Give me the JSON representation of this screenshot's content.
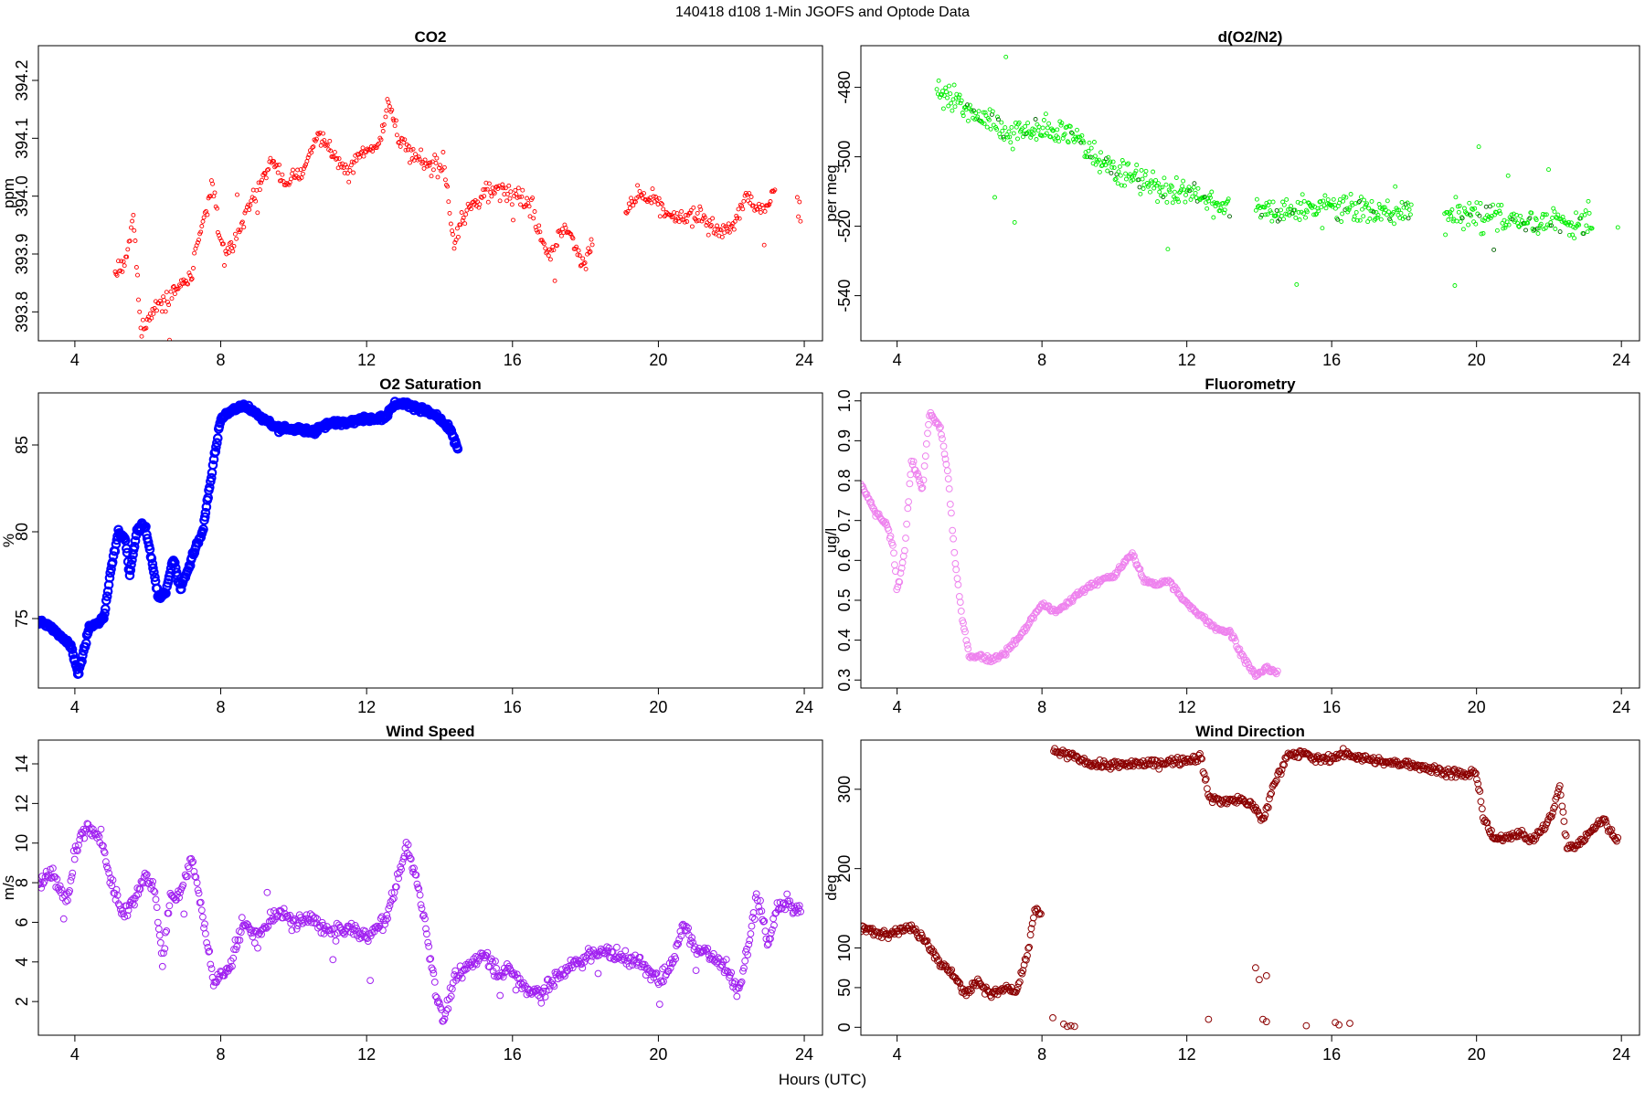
{
  "figure": {
    "title": "140418   d108   1-Min  JGOFS and Optode Data",
    "xlabel": "Hours (UTC)"
  },
  "chart_data": [
    {
      "id": "co2",
      "type": "scatter",
      "title": "CO2",
      "ylabel": "ppm",
      "color": "#ff0000",
      "marker": "small-open-circle",
      "xlim": [
        3,
        24.5
      ],
      "ylim": [
        393.75,
        394.26
      ],
      "xticks": [
        4,
        8,
        12,
        16,
        20,
        24
      ],
      "yticks": [
        393.8,
        393.9,
        394.0,
        394.1,
        394.2
      ],
      "ytick_decimals": 1,
      "ytick_rotation": "vertical",
      "gaps": [
        [
          18.2,
          19.1
        ],
        [
          23.2,
          23.8
        ]
      ],
      "profile": [
        [
          5.1,
          393.87
        ],
        [
          5.4,
          393.88
        ],
        [
          5.6,
          393.97
        ],
        [
          5.8,
          393.77
        ],
        [
          6.0,
          393.79
        ],
        [
          6.4,
          393.82
        ],
        [
          6.8,
          393.84
        ],
        [
          7.2,
          393.86
        ],
        [
          7.5,
          393.95
        ],
        [
          7.8,
          394.02
        ],
        [
          8.0,
          393.91
        ],
        [
          8.3,
          393.91
        ],
        [
          8.6,
          393.96
        ],
        [
          9.0,
          394.01
        ],
        [
          9.4,
          394.06
        ],
        [
          9.8,
          394.02
        ],
        [
          10.3,
          394.05
        ],
        [
          10.7,
          394.11
        ],
        [
          11.0,
          394.08
        ],
        [
          11.4,
          394.04
        ],
        [
          11.8,
          394.07
        ],
        [
          12.3,
          394.09
        ],
        [
          12.6,
          394.16
        ],
        [
          12.9,
          394.1
        ],
        [
          13.2,
          394.07
        ],
        [
          13.8,
          394.05
        ],
        [
          14.1,
          394.06
        ],
        [
          14.4,
          393.92
        ],
        [
          14.8,
          393.98
        ],
        [
          15.2,
          394.0
        ],
        [
          15.7,
          394.01
        ],
        [
          16.1,
          394.01
        ],
        [
          16.5,
          393.98
        ],
        [
          17.0,
          393.9
        ],
        [
          17.5,
          393.95
        ],
        [
          17.9,
          393.88
        ],
        [
          18.2,
          393.92
        ],
        [
          19.1,
          393.97
        ],
        [
          19.5,
          394.0
        ],
        [
          19.9,
          393.99
        ],
        [
          20.4,
          393.96
        ],
        [
          20.8,
          393.96
        ],
        [
          21.2,
          393.97
        ],
        [
          21.6,
          393.94
        ],
        [
          22.0,
          393.94
        ],
        [
          22.4,
          394.0
        ],
        [
          22.8,
          393.97
        ],
        [
          23.2,
          394.01
        ],
        [
          23.8,
          393.97
        ],
        [
          23.9,
          393.97
        ]
      ],
      "noise": 0.018,
      "n": 640,
      "outlier_rate": 0.04,
      "outlier_scale": 3.5
    },
    {
      "id": "do2n2",
      "type": "scatter",
      "title": "d(O2/N2)",
      "ylabel": "per meg",
      "color": "#00ee00",
      "marker": "small-open-circle",
      "dark_point_color": "#006400",
      "xlim": [
        3,
        24.5
      ],
      "ylim": [
        -553,
        -468
      ],
      "xticks": [
        4,
        8,
        12,
        16,
        20,
        24
      ],
      "yticks": [
        -540,
        -520,
        -500,
        -480
      ],
      "ytick_decimals": 0,
      "ytick_rotation": "vertical",
      "gaps": [
        [
          13.2,
          13.9
        ],
        [
          18.2,
          19.1
        ],
        [
          23.2,
          23.9
        ]
      ],
      "profile": [
        [
          5.1,
          -480
        ],
        [
          5.6,
          -483
        ],
        [
          6.2,
          -488
        ],
        [
          6.8,
          -492
        ],
        [
          7.4,
          -493
        ],
        [
          8.0,
          -492
        ],
        [
          8.6,
          -493
        ],
        [
          9.2,
          -497
        ],
        [
          9.8,
          -502
        ],
        [
          10.4,
          -505
        ],
        [
          11.0,
          -508
        ],
        [
          11.6,
          -510
        ],
        [
          12.2,
          -511
        ],
        [
          12.8,
          -513
        ],
        [
          13.2,
          -514
        ],
        [
          13.9,
          -513
        ],
        [
          14.5,
          -516
        ],
        [
          15.2,
          -515
        ],
        [
          15.8,
          -514
        ],
        [
          16.4,
          -514
        ],
        [
          17.0,
          -515
        ],
        [
          17.6,
          -517
        ],
        [
          18.2,
          -516
        ],
        [
          19.1,
          -517
        ],
        [
          19.8,
          -517
        ],
        [
          20.4,
          -517
        ],
        [
          21.0,
          -518
        ],
        [
          21.6,
          -519
        ],
        [
          22.2,
          -519
        ],
        [
          22.8,
          -519
        ],
        [
          23.2,
          -517
        ],
        [
          23.9,
          -519
        ]
      ],
      "noise": 4.5,
      "n": 720,
      "outlier_rate": 0.03,
      "outlier_scale": 4
    },
    {
      "id": "o2sat",
      "type": "scatter",
      "title": "O2 Saturation",
      "ylabel": "%",
      "color": "#0000ff",
      "marker": "thick-line",
      "xlim": [
        3,
        24.5
      ],
      "ylim": [
        71,
        88
      ],
      "xticks": [
        4,
        8,
        12,
        16,
        20,
        24
      ],
      "yticks": [
        75,
        80,
        85
      ],
      "ytick_decimals": 0,
      "ytick_rotation": "vertical",
      "gaps": [],
      "profile": [
        [
          3.0,
          74.8
        ],
        [
          3.3,
          74.6
        ],
        [
          3.6,
          74.0
        ],
        [
          3.9,
          73.4
        ],
        [
          4.1,
          71.8
        ],
        [
          4.4,
          74.5
        ],
        [
          4.8,
          75.0
        ],
        [
          5.0,
          78.0
        ],
        [
          5.2,
          80.0
        ],
        [
          5.4,
          79.5
        ],
        [
          5.5,
          77.5
        ],
        [
          5.7,
          80.0
        ],
        [
          5.9,
          80.5
        ],
        [
          6.1,
          78.5
        ],
        [
          6.3,
          76.2
        ],
        [
          6.5,
          76.5
        ],
        [
          6.7,
          78.5
        ],
        [
          6.9,
          76.6
        ],
        [
          7.2,
          78.5
        ],
        [
          7.5,
          80.0
        ],
        [
          7.8,
          84.0
        ],
        [
          8.0,
          86.5
        ],
        [
          8.3,
          87.0
        ],
        [
          8.6,
          87.3
        ],
        [
          9.0,
          86.8
        ],
        [
          9.5,
          86.0
        ],
        [
          10.0,
          85.9
        ],
        [
          10.5,
          85.8
        ],
        [
          11.0,
          86.2
        ],
        [
          11.5,
          86.4
        ],
        [
          12.0,
          86.5
        ],
        [
          12.5,
          86.6
        ],
        [
          12.8,
          87.4
        ],
        [
          13.2,
          87.3
        ],
        [
          13.6,
          87.0
        ],
        [
          14.0,
          86.5
        ],
        [
          14.3,
          85.8
        ],
        [
          14.5,
          84.8
        ]
      ],
      "noise": 0.2,
      "n": 520,
      "outlier_rate": 0,
      "outlier_scale": 1
    },
    {
      "id": "fluoro",
      "type": "scatter",
      "title": "Fluorometry",
      "ylabel": "ug/l",
      "color": "#ee82ee",
      "marker": "open-circle",
      "xlim": [
        3,
        24.5
      ],
      "ylim": [
        0.28,
        1.02
      ],
      "xticks": [
        4,
        8,
        12,
        16,
        20,
        24
      ],
      "yticks": [
        0.3,
        0.4,
        0.5,
        0.6,
        0.7,
        0.8,
        0.9,
        1.0
      ],
      "ytick_decimals": 1,
      "ytick_rotation": "vertical",
      "gaps": [],
      "profile": [
        [
          3.0,
          0.79
        ],
        [
          3.4,
          0.72
        ],
        [
          3.7,
          0.69
        ],
        [
          3.9,
          0.63
        ],
        [
          4.0,
          0.52
        ],
        [
          4.2,
          0.62
        ],
        [
          4.4,
          0.85
        ],
        [
          4.7,
          0.78
        ],
        [
          4.9,
          0.97
        ],
        [
          5.2,
          0.93
        ],
        [
          5.4,
          0.82
        ],
        [
          5.6,
          0.6
        ],
        [
          5.8,
          0.45
        ],
        [
          6.0,
          0.36
        ],
        [
          6.3,
          0.36
        ],
        [
          6.6,
          0.35
        ],
        [
          7.0,
          0.37
        ],
        [
          7.4,
          0.41
        ],
        [
          7.7,
          0.45
        ],
        [
          8.0,
          0.49
        ],
        [
          8.4,
          0.47
        ],
        [
          8.8,
          0.5
        ],
        [
          9.2,
          0.53
        ],
        [
          9.6,
          0.55
        ],
        [
          10.0,
          0.56
        ],
        [
          10.5,
          0.62
        ],
        [
          10.8,
          0.55
        ],
        [
          11.2,
          0.54
        ],
        [
          11.5,
          0.55
        ],
        [
          11.9,
          0.5
        ],
        [
          12.4,
          0.46
        ],
        [
          12.8,
          0.43
        ],
        [
          13.2,
          0.42
        ],
        [
          13.6,
          0.35
        ],
        [
          13.9,
          0.31
        ],
        [
          14.2,
          0.33
        ],
        [
          14.5,
          0.32
        ]
      ],
      "noise": 0.008,
      "n": 420,
      "outlier_rate": 0,
      "outlier_scale": 1
    },
    {
      "id": "windspeed",
      "type": "scatter",
      "title": "Wind Speed",
      "ylabel": "m/s",
      "color": "#a020f0",
      "marker": "open-circle",
      "xlim": [
        3,
        24.5
      ],
      "ylim": [
        0.3,
        15.2
      ],
      "xticks": [
        4,
        8,
        12,
        16,
        20,
        24
      ],
      "yticks": [
        2,
        4,
        6,
        8,
        10,
        12,
        14
      ],
      "ytick_decimals": 0,
      "ytick_rotation": "vertical",
      "gaps": [],
      "profile": [
        [
          3.0,
          7.8
        ],
        [
          3.4,
          8.5
        ],
        [
          3.8,
          7.0
        ],
        [
          4.0,
          9.5
        ],
        [
          4.3,
          10.8
        ],
        [
          4.7,
          10.2
        ],
        [
          5.0,
          8.0
        ],
        [
          5.3,
          6.5
        ],
        [
          5.6,
          7.0
        ],
        [
          5.9,
          8.5
        ],
        [
          6.2,
          7.5
        ],
        [
          6.4,
          4.0
        ],
        [
          6.6,
          7.0
        ],
        [
          6.9,
          7.5
        ],
        [
          7.2,
          9.2
        ],
        [
          7.5,
          6.5
        ],
        [
          7.8,
          3.0
        ],
        [
          8.2,
          3.5
        ],
        [
          8.6,
          6.0
        ],
        [
          9.0,
          5.2
        ],
        [
          9.5,
          6.5
        ],
        [
          10.0,
          6.0
        ],
        [
          10.5,
          6.2
        ],
        [
          11.0,
          5.5
        ],
        [
          11.5,
          5.7
        ],
        [
          12.0,
          5.3
        ],
        [
          12.5,
          6.0
        ],
        [
          12.8,
          7.8
        ],
        [
          13.1,
          9.8
        ],
        [
          13.4,
          8.0
        ],
        [
          13.6,
          6.0
        ],
        [
          13.9,
          2.5
        ],
        [
          14.1,
          1.0
        ],
        [
          14.4,
          3.0
        ],
        [
          14.8,
          3.8
        ],
        [
          15.2,
          4.5
        ],
        [
          15.6,
          3.5
        ],
        [
          16.0,
          3.5
        ],
        [
          16.4,
          2.6
        ],
        [
          16.8,
          2.4
        ],
        [
          17.2,
          3.2
        ],
        [
          17.6,
          3.8
        ],
        [
          18.0,
          4.2
        ],
        [
          18.4,
          4.6
        ],
        [
          18.8,
          4.3
        ],
        [
          19.2,
          4.2
        ],
        [
          19.6,
          3.8
        ],
        [
          20.0,
          3.0
        ],
        [
          20.4,
          4.0
        ],
        [
          20.7,
          6.0
        ],
        [
          21.0,
          4.6
        ],
        [
          21.4,
          4.5
        ],
        [
          21.8,
          3.8
        ],
        [
          22.2,
          2.5
        ],
        [
          22.5,
          5.0
        ],
        [
          22.7,
          7.5
        ],
        [
          23.0,
          5.0
        ],
        [
          23.3,
          6.8
        ],
        [
          23.6,
          7.0
        ],
        [
          23.9,
          6.3
        ]
      ],
      "noise": 0.45,
      "n": 780,
      "outlier_rate": 0.02,
      "outlier_scale": 3
    },
    {
      "id": "winddir",
      "type": "scatter",
      "title": "Wind Direction",
      "ylabel": "deg",
      "color": "#8b0000",
      "marker": "open-circle",
      "xlim": [
        3,
        24.5
      ],
      "ylim": [
        -10,
        362
      ],
      "xticks": [
        4,
        8,
        12,
        16,
        20,
        24
      ],
      "yticks": [
        0,
        50,
        100,
        200,
        300
      ],
      "ytick_decimals": 0,
      "ytick_rotation": "vertical",
      "gaps": [
        [
          8.0,
          8.3
        ],
        [
          12.6,
          12.6
        ]
      ],
      "profile": [
        [
          3.0,
          125
        ],
        [
          3.5,
          118
        ],
        [
          4.0,
          122
        ],
        [
          4.4,
          125
        ],
        [
          4.8,
          110
        ],
        [
          5.2,
          80
        ],
        [
          5.6,
          65
        ],
        [
          5.9,
          40
        ],
        [
          6.2,
          60
        ],
        [
          6.6,
          40
        ],
        [
          7.0,
          50
        ],
        [
          7.3,
          45
        ],
        [
          7.6,
          90
        ],
        [
          7.8,
          150
        ],
        [
          8.0,
          140
        ],
        [
          8.3,
          348
        ],
        [
          8.8,
          342
        ],
        [
          9.4,
          332
        ],
        [
          10.0,
          330
        ],
        [
          10.6,
          332
        ],
        [
          11.2,
          333
        ],
        [
          11.8,
          336
        ],
        [
          12.4,
          340
        ],
        [
          12.6,
          290
        ],
        [
          13.0,
          285
        ],
        [
          13.5,
          287
        ],
        [
          13.8,
          280
        ],
        [
          14.1,
          260
        ],
        [
          14.4,
          305
        ],
        [
          14.8,
          345
        ],
        [
          15.2,
          345
        ],
        [
          15.6,
          338
        ],
        [
          16.0,
          340
        ],
        [
          16.4,
          345
        ],
        [
          16.8,
          340
        ],
        [
          17.2,
          335
        ],
        [
          17.6,
          333
        ],
        [
          18.0,
          333
        ],
        [
          18.4,
          330
        ],
        [
          18.8,
          325
        ],
        [
          19.2,
          322
        ],
        [
          19.6,
          318
        ],
        [
          20.0,
          320
        ],
        [
          20.2,
          262
        ],
        [
          20.5,
          235
        ],
        [
          20.8,
          240
        ],
        [
          21.2,
          245
        ],
        [
          21.5,
          235
        ],
        [
          21.8,
          248
        ],
        [
          22.1,
          270
        ],
        [
          22.3,
          305
        ],
        [
          22.5,
          225
        ],
        [
          22.8,
          230
        ],
        [
          23.2,
          250
        ],
        [
          23.5,
          262
        ],
        [
          23.8,
          240
        ],
        [
          23.9,
          235
        ]
      ],
      "noise": 6,
      "n": 720,
      "outlier_rate": 0,
      "outlier_scale": 1,
      "extra_points": [
        [
          8.3,
          12
        ],
        [
          8.6,
          4
        ],
        [
          8.7,
          1
        ],
        [
          8.8,
          2
        ],
        [
          8.9,
          1
        ],
        [
          12.6,
          10
        ],
        [
          13.9,
          75
        ],
        [
          14.0,
          60
        ],
        [
          14.1,
          10
        ],
        [
          14.2,
          65
        ],
        [
          14.2,
          7
        ],
        [
          15.3,
          2
        ],
        [
          16.1,
          6
        ],
        [
          16.2,
          3
        ],
        [
          16.5,
          5
        ]
      ]
    }
  ]
}
